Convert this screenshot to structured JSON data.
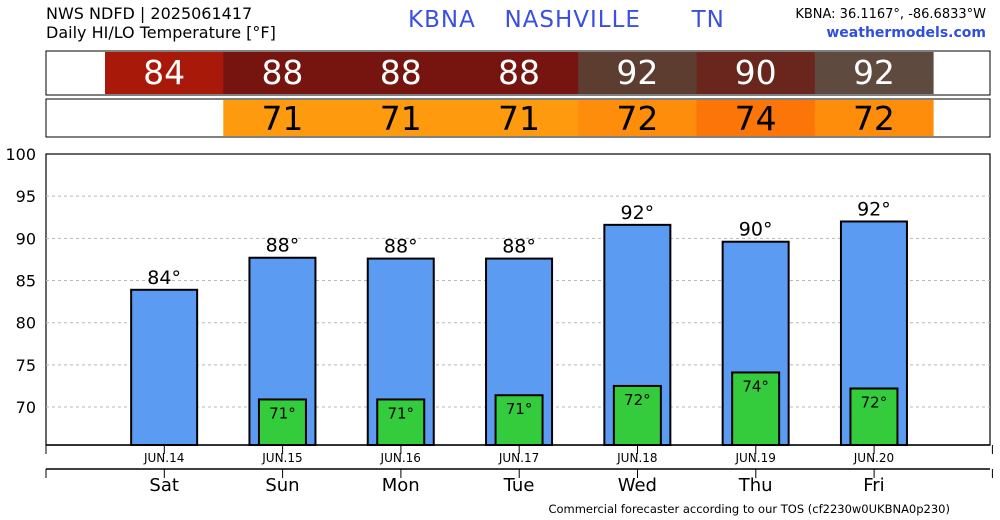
{
  "header": {
    "line1": "NWS NDFD | 2025061417",
    "line2": "Daily HI/LO Temperature [°F]",
    "station": "KBNA",
    "city": "NASHVILLE",
    "state": "TN",
    "coords": "KBNA: 36.1167°, -86.6833°W",
    "site": "weathermodels.com"
  },
  "footer": "Commercial forecaster according to our TOS (cf2230w0UKBNA0p230)",
  "chart_data": {
    "type": "bar",
    "categories": [
      "JUN.14",
      "JUN.15",
      "JUN.16",
      "JUN.17",
      "JUN.18",
      "JUN.19",
      "JUN.20"
    ],
    "days": [
      "Sat",
      "Sun",
      "Mon",
      "Tue",
      "Wed",
      "Thu",
      "Fri"
    ],
    "series": [
      {
        "values": [
          84,
          88,
          88,
          88,
          92,
          90,
          92
        ],
        "bar_values": [
          83.9,
          87.7,
          87.6,
          87.6,
          91.6,
          89.6,
          92.0
        ],
        "color": "#5b9cf2"
      },
      {
        "values": [
          null,
          71,
          71,
          71,
          72,
          74,
          72
        ],
        "bar_values": [
          null,
          70.9,
          70.9,
          71.4,
          72.5,
          74.1,
          72.2
        ],
        "color": "#34cc3c"
      }
    ],
    "hi_row_colors": [
      "#a8190a",
      "#76150f",
      "#76150f",
      "#76150f",
      "#5e3d31",
      "#6a261d",
      "#5e4a3f"
    ],
    "lo_row_colors": [
      null,
      "#fd9a0e",
      "#fd9a0e",
      "#fd9a0e",
      "#fd8d0a",
      "#fc7508",
      "#fd8d0a"
    ],
    "y_ticks": [
      70,
      75,
      80,
      85,
      90,
      95,
      100
    ],
    "ylim": [
      65.5,
      100
    ],
    "degree_suffix": "°",
    "grid": true
  }
}
